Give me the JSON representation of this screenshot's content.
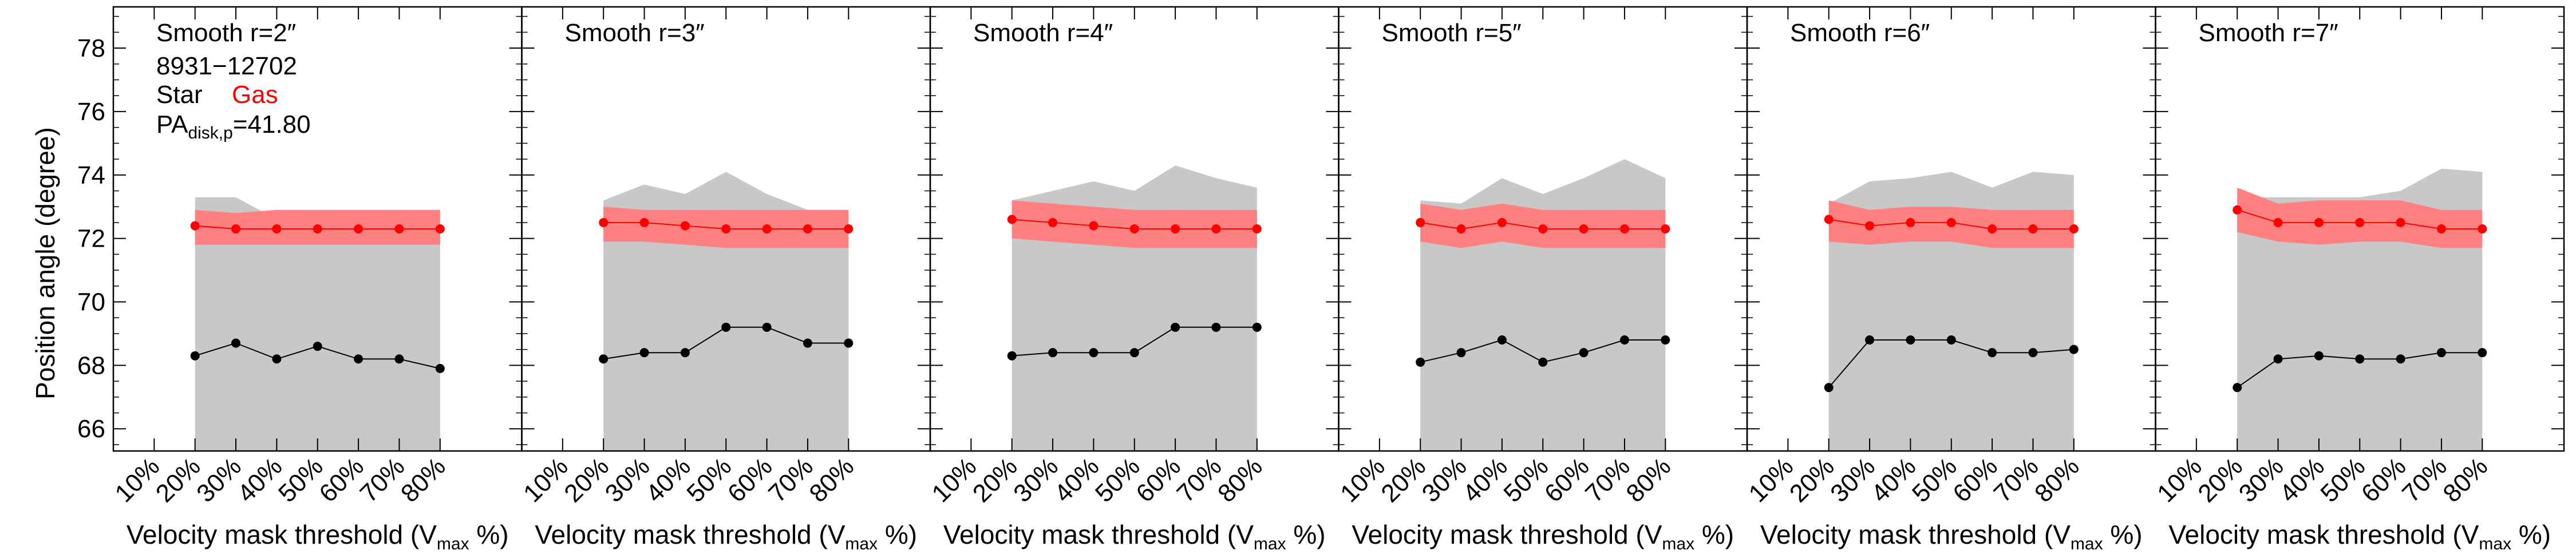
{
  "figure": {
    "ylabel": "Position angle (degree)",
    "object_id": "8931−12702",
    "legend": {
      "star": "Star",
      "gas": "Gas"
    },
    "pa_label": "PA",
    "pa_sub": "disk,p",
    "pa_value": "=41.80",
    "xlabel_main": "Velocity mask threshold (V",
    "xlabel_sub": "max",
    "xlabel_end": " %)",
    "colors": {
      "star": "#000000",
      "gas": "#ff0000",
      "gas_band": "#ff8080",
      "star_band": "#c8c8c8"
    }
  },
  "chart_data": [
    {
      "type": "line",
      "title": "Smooth r=2″",
      "ylim": [
        65.3,
        79.3
      ],
      "x": [
        20,
        30,
        40,
        50,
        60,
        70,
        80
      ],
      "xticks": [
        "10%",
        "20%",
        "30%",
        "40%",
        "50%",
        "60%",
        "70%",
        "80%"
      ],
      "yticks": [
        66,
        68,
        70,
        72,
        74,
        76,
        78
      ],
      "star": [
        68.3,
        68.7,
        68.2,
        68.6,
        68.2,
        68.2,
        67.9
      ],
      "gas": [
        72.4,
        72.3,
        72.3,
        72.3,
        72.3,
        72.3,
        72.3
      ],
      "gas_band": {
        "low": [
          71.8,
          71.8,
          71.8,
          71.8,
          71.8,
          71.8,
          71.8
        ],
        "high": [
          72.9,
          72.8,
          72.9,
          72.9,
          72.9,
          72.9,
          72.9
        ]
      },
      "star_band": {
        "low": [
          65.3,
          65.3,
          65.3,
          65.3,
          65.3,
          65.3,
          65.3
        ],
        "high": [
          73.3,
          73.3,
          72.6,
          72.7,
          72.5,
          72.5,
          72.6
        ]
      }
    },
    {
      "type": "line",
      "title": "Smooth r=3″",
      "ylim": [
        65.3,
        79.3
      ],
      "x": [
        20,
        30,
        40,
        50,
        60,
        70,
        80
      ],
      "xticks": [
        "10%",
        "20%",
        "30%",
        "40%",
        "50%",
        "60%",
        "70%",
        "80%"
      ],
      "yticks": [
        66,
        68,
        70,
        72,
        74,
        76,
        78
      ],
      "star": [
        68.2,
        68.4,
        68.4,
        69.2,
        69.2,
        68.7,
        68.7
      ],
      "gas": [
        72.5,
        72.5,
        72.4,
        72.3,
        72.3,
        72.3,
        72.3
      ],
      "gas_band": {
        "low": [
          71.9,
          71.9,
          71.8,
          71.7,
          71.7,
          71.7,
          71.7
        ],
        "high": [
          73.0,
          72.9,
          72.9,
          72.9,
          72.9,
          72.9,
          72.9
        ]
      },
      "star_band": {
        "low": [
          65.3,
          65.3,
          65.3,
          65.3,
          65.3,
          65.3,
          65.3
        ],
        "high": [
          73.2,
          73.7,
          73.4,
          74.1,
          73.4,
          72.9,
          72.9
        ]
      }
    },
    {
      "type": "line",
      "title": "Smooth r=4″",
      "ylim": [
        65.3,
        79.3
      ],
      "x": [
        20,
        30,
        40,
        50,
        60,
        70,
        80
      ],
      "xticks": [
        "10%",
        "20%",
        "30%",
        "40%",
        "50%",
        "60%",
        "70%",
        "80%"
      ],
      "yticks": [
        66,
        68,
        70,
        72,
        74,
        76,
        78
      ],
      "star": [
        68.3,
        68.4,
        68.4,
        68.4,
        69.2,
        69.2,
        69.2
      ],
      "gas": [
        72.6,
        72.5,
        72.4,
        72.3,
        72.3,
        72.3,
        72.3
      ],
      "gas_band": {
        "low": [
          72.0,
          71.9,
          71.8,
          71.7,
          71.7,
          71.7,
          71.7
        ],
        "high": [
          73.2,
          73.1,
          73.0,
          72.9,
          72.9,
          72.9,
          72.9
        ]
      },
      "star_band": {
        "low": [
          65.3,
          65.3,
          65.3,
          65.3,
          65.3,
          65.3,
          65.3
        ],
        "high": [
          73.2,
          73.5,
          73.8,
          73.5,
          74.3,
          73.9,
          73.6
        ]
      }
    },
    {
      "type": "line",
      "title": "Smooth r=5″",
      "ylim": [
        65.3,
        79.3
      ],
      "x": [
        20,
        30,
        40,
        50,
        60,
        70,
        80
      ],
      "xticks": [
        "10%",
        "20%",
        "30%",
        "40%",
        "50%",
        "60%",
        "70%",
        "80%"
      ],
      "yticks": [
        66,
        68,
        70,
        72,
        74,
        76,
        78
      ],
      "star": [
        68.1,
        68.4,
        68.8,
        68.1,
        68.4,
        68.8,
        68.8
      ],
      "gas": [
        72.5,
        72.3,
        72.5,
        72.3,
        72.3,
        72.3,
        72.3
      ],
      "gas_band": {
        "low": [
          71.9,
          71.7,
          71.9,
          71.7,
          71.7,
          71.7,
          71.7
        ],
        "high": [
          73.1,
          72.9,
          73.1,
          72.9,
          72.9,
          72.9,
          72.9
        ]
      },
      "star_band": {
        "low": [
          65.3,
          65.3,
          65.3,
          65.3,
          65.3,
          65.3,
          65.3
        ],
        "high": [
          73.2,
          73.1,
          73.9,
          73.4,
          73.9,
          74.5,
          73.9
        ]
      }
    },
    {
      "type": "line",
      "title": "Smooth r=6″",
      "ylim": [
        65.3,
        79.3
      ],
      "x": [
        20,
        30,
        40,
        50,
        60,
        70,
        80
      ],
      "xticks": [
        "10%",
        "20%",
        "30%",
        "40%",
        "50%",
        "60%",
        "70%",
        "80%"
      ],
      "yticks": [
        66,
        68,
        70,
        72,
        74,
        76,
        78
      ],
      "star": [
        67.3,
        68.8,
        68.8,
        68.8,
        68.4,
        68.4,
        68.5
      ],
      "gas": [
        72.6,
        72.4,
        72.5,
        72.5,
        72.3,
        72.3,
        72.3
      ],
      "gas_band": {
        "low": [
          71.9,
          71.8,
          71.9,
          71.9,
          71.7,
          71.7,
          71.7
        ],
        "high": [
          73.2,
          72.9,
          73.0,
          73.0,
          72.9,
          72.9,
          72.9
        ]
      },
      "star_band": {
        "low": [
          65.3,
          65.3,
          65.3,
          65.3,
          65.3,
          65.3,
          65.3
        ],
        "high": [
          73.1,
          73.8,
          73.9,
          74.1,
          73.6,
          74.1,
          74.0
        ]
      }
    },
    {
      "type": "line",
      "title": "Smooth r=7″",
      "ylim": [
        65.3,
        79.3
      ],
      "x": [
        20,
        30,
        40,
        50,
        60,
        70,
        80
      ],
      "xticks": [
        "10%",
        "20%",
        "30%",
        "40%",
        "50%",
        "60%",
        "70%",
        "80%"
      ],
      "yticks": [
        66,
        68,
        70,
        72,
        74,
        76,
        78
      ],
      "star": [
        67.3,
        68.2,
        68.3,
        68.2,
        68.2,
        68.4,
        68.4
      ],
      "gas": [
        72.9,
        72.5,
        72.5,
        72.5,
        72.5,
        72.3,
        72.3
      ],
      "gas_band": {
        "low": [
          72.2,
          71.9,
          71.8,
          71.9,
          71.9,
          71.7,
          71.7
        ],
        "high": [
          73.6,
          73.1,
          73.2,
          73.2,
          73.2,
          72.9,
          72.9
        ]
      },
      "star_band": {
        "low": [
          65.3,
          65.3,
          65.3,
          65.3,
          65.3,
          65.3,
          65.3
        ],
        "high": [
          73.3,
          73.3,
          73.3,
          73.3,
          73.5,
          74.2,
          74.1
        ]
      }
    }
  ]
}
